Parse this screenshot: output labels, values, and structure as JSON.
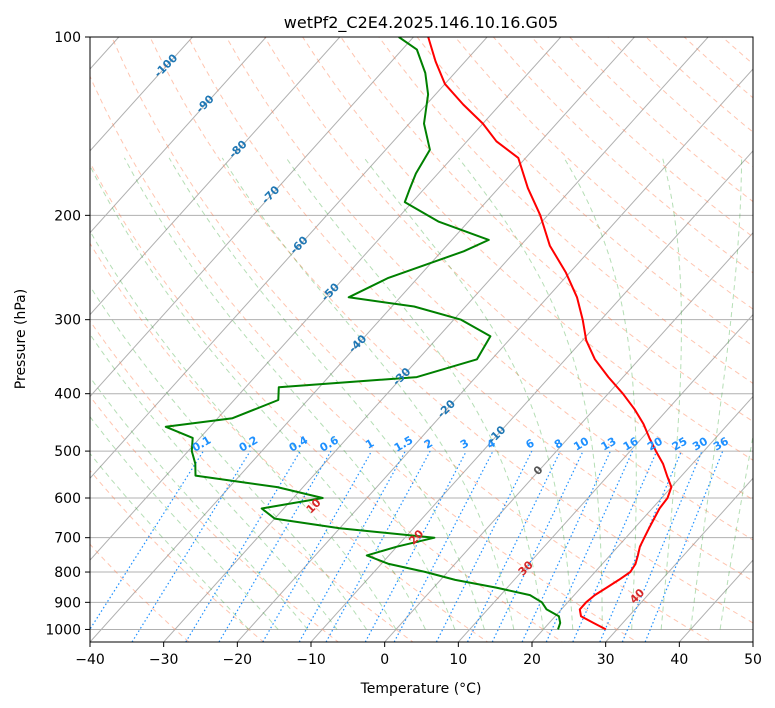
{
  "chart_data": {
    "type": "line",
    "title": "wetPf2_C2E4.2025.146.10.16.G05",
    "xlabel": "Temperature (°C)",
    "ylabel": "Pressure (hPa)",
    "xlim": [
      -40,
      50
    ],
    "ylim": [
      1050,
      100
    ],
    "y_scale": "log",
    "x_ticks": [
      "−40",
      "−30",
      "−20",
      "−10",
      "0",
      "10",
      "20",
      "30",
      "40",
      "50"
    ],
    "x_tick_values": [
      -40,
      -30,
      -20,
      -10,
      0,
      10,
      20,
      30,
      40,
      50
    ],
    "y_ticks": [
      "100",
      "200",
      "300",
      "400",
      "500",
      "600",
      "700",
      "800",
      "900",
      "1000"
    ],
    "y_tick_values": [
      100,
      200,
      300,
      400,
      500,
      600,
      700,
      800,
      900,
      1000
    ],
    "grid": true,
    "skew": true,
    "isotherm_labels": [
      {
        "text": "-100",
        "value": -100,
        "p": 112
      },
      {
        "text": "-90",
        "value": -90,
        "p": 130
      },
      {
        "text": "-80",
        "value": -80,
        "p": 155
      },
      {
        "text": "-70",
        "value": -70,
        "p": 185
      },
      {
        "text": "-60",
        "value": -60,
        "p": 225
      },
      {
        "text": "-50",
        "value": -50,
        "p": 270
      },
      {
        "text": "-40",
        "value": -40,
        "p": 330
      },
      {
        "text": "-30",
        "value": -30,
        "p": 375
      },
      {
        "text": "-20",
        "value": -20,
        "p": 425
      },
      {
        "text": "-10",
        "value": -10,
        "p": 470
      },
      {
        "text": "0",
        "value": 0,
        "p": 540
      }
    ],
    "dry_adiabat_labels": [
      {
        "text": "10",
        "value": 10,
        "p": 620
      },
      {
        "text": "20",
        "value": 20,
        "p": 700
      },
      {
        "text": "30",
        "value": 30,
        "p": 790
      },
      {
        "text": "40",
        "value": 40,
        "p": 880
      }
    ],
    "mixing_ratio_labels": [
      "0.1",
      "0.2",
      "0.4",
      "0.6",
      "1",
      "1.5",
      "2",
      "3",
      "4",
      "6",
      "8",
      "10",
      "13",
      "16",
      "20",
      "25",
      "30",
      "36"
    ],
    "colors": {
      "temperature": "#ff0000",
      "dewpoint": "#008000",
      "isotherm_label": "#1f77b4",
      "dry_adiabat": "#ff7f50",
      "dry_adiabat_label": "#d62728",
      "moist_adiabat": "#2ca02c",
      "mixing_ratio": "#1e90ff",
      "grid": "#b0b0b0"
    },
    "series": [
      {
        "key": "temperature",
        "points": [
          [
            28.5,
            1000
          ],
          [
            26.0,
            975
          ],
          [
            23.5,
            950
          ],
          [
            22.5,
            925
          ],
          [
            22.5,
            900
          ],
          [
            22.8,
            875
          ],
          [
            23.5,
            850
          ],
          [
            24.2,
            825
          ],
          [
            24.8,
            800
          ],
          [
            24.5,
            775
          ],
          [
            23.8,
            750
          ],
          [
            23.0,
            725
          ],
          [
            22.5,
            700
          ],
          [
            22.0,
            675
          ],
          [
            21.5,
            650
          ],
          [
            21.0,
            625
          ],
          [
            20.8,
            600
          ],
          [
            20.0,
            575
          ],
          [
            18.0,
            550
          ],
          [
            16.0,
            525
          ],
          [
            13.5,
            500
          ],
          [
            11.0,
            475
          ],
          [
            8.5,
            450
          ],
          [
            5.5,
            425
          ],
          [
            2.0,
            400
          ],
          [
            -2.0,
            375
          ],
          [
            -6.0,
            350
          ],
          [
            -9.5,
            325
          ],
          [
            -12.5,
            300
          ],
          [
            -16.0,
            275
          ],
          [
            -20.5,
            250
          ],
          [
            -26.0,
            225
          ],
          [
            -31.0,
            200
          ],
          [
            -36.0,
            180
          ],
          [
            -41.0,
            160
          ],
          [
            -46.0,
            150
          ],
          [
            -50.0,
            140
          ],
          [
            -55.0,
            130
          ],
          [
            -60.0,
            120
          ],
          [
            -64.0,
            110
          ],
          [
            -68.0,
            100
          ]
        ]
      },
      {
        "key": "dewpoint",
        "points": [
          [
            22.0,
            1000
          ],
          [
            21.5,
            975
          ],
          [
            20.5,
            950
          ],
          [
            18.0,
            925
          ],
          [
            16.5,
            900
          ],
          [
            14.0,
            875
          ],
          [
            8.5,
            850
          ],
          [
            2.0,
            825
          ],
          [
            -3.0,
            800
          ],
          [
            -9.0,
            775
          ],
          [
            -13.0,
            750
          ],
          [
            -10.0,
            725
          ],
          [
            -6.0,
            700
          ],
          [
            -20.0,
            675
          ],
          [
            -30.0,
            650
          ],
          [
            -33.0,
            625
          ],
          [
            -26.0,
            600
          ],
          [
            -33.5,
            575
          ],
          [
            -46.0,
            550
          ],
          [
            -47.5,
            525
          ],
          [
            -49.5,
            500
          ],
          [
            -51.0,
            475
          ],
          [
            -56.0,
            455
          ],
          [
            -48.0,
            440
          ],
          [
            -44.0,
            410
          ],
          [
            -45.5,
            390
          ],
          [
            -28.0,
            375
          ],
          [
            -22.0,
            350
          ],
          [
            -23.0,
            320
          ],
          [
            -29.0,
            300
          ],
          [
            -37.0,
            285
          ],
          [
            -47.0,
            275
          ],
          [
            -44.0,
            255
          ],
          [
            -37.0,
            230
          ],
          [
            -35.0,
            220
          ],
          [
            -44.0,
            205
          ],
          [
            -51.0,
            190
          ],
          [
            -52.0,
            180
          ],
          [
            -53.0,
            170
          ],
          [
            -54.0,
            155
          ],
          [
            -58.0,
            140
          ],
          [
            -61.0,
            125
          ],
          [
            -64.0,
            115
          ],
          [
            -68.0,
            105
          ],
          [
            -72.0,
            100
          ]
        ]
      }
    ]
  }
}
